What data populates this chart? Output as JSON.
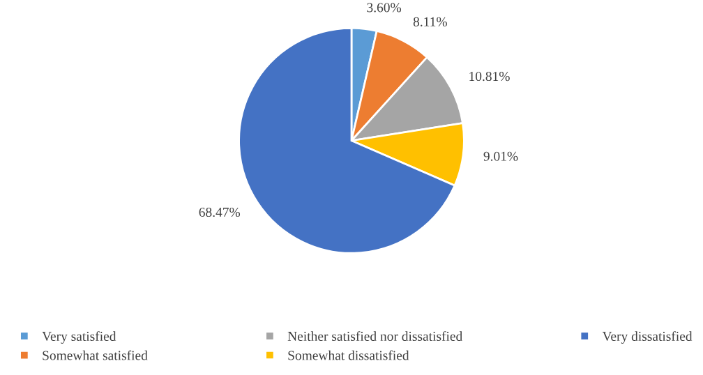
{
  "chart_data": {
    "type": "pie",
    "categories": [
      "Very satisfied",
      "Somewhat satisfied",
      "Neither satisfied nor dissatisfied",
      "Somewhat dissatisfied",
      "Very dissatisfied"
    ],
    "values": [
      3.6,
      8.11,
      10.81,
      9.01,
      68.47
    ],
    "value_labels": [
      "3.60%",
      "8.11%",
      "10.81%",
      "9.01%",
      "68.47%"
    ],
    "colors": [
      "#5b9bd5",
      "#ed7d31",
      "#a5a5a5",
      "#ffc000",
      "#4472c4"
    ],
    "legend": "bottom"
  }
}
